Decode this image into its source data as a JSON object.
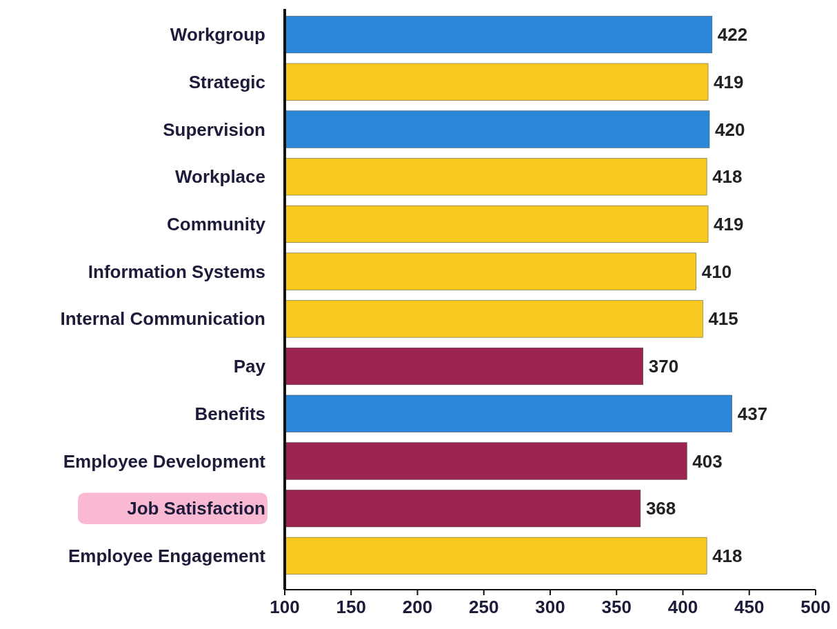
{
  "chart_data": {
    "type": "bar",
    "orientation": "horizontal",
    "categories": [
      "Workgroup",
      "Strategic",
      "Supervision",
      "Workplace",
      "Community",
      "Information Systems",
      "Internal Communication",
      "Pay",
      "Benefits",
      "Employee Development",
      "Job Satisfaction",
      "Employee Engagement"
    ],
    "values": [
      422,
      419,
      420,
      418,
      419,
      410,
      415,
      370,
      437,
      403,
      368,
      418
    ],
    "colors": [
      "#2a86d6",
      "#f7c81e",
      "#2a86d6",
      "#f7c81e",
      "#f7c81e",
      "#f7c81e",
      "#f7c81e",
      "#9c2450",
      "#2a86d6",
      "#9c2450",
      "#9c2450",
      "#f7c81e"
    ],
    "xlim": [
      100,
      500
    ],
    "xticks": [
      100,
      150,
      200,
      250,
      300,
      350,
      400,
      450,
      500
    ],
    "data_labels": true
  }
}
